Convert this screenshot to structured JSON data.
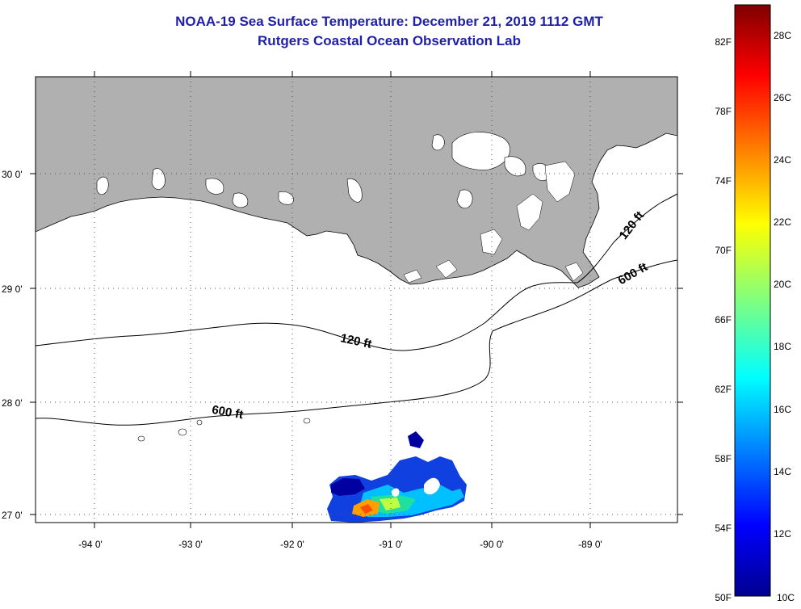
{
  "header": {
    "title": "NOAA-19 Sea Surface Temperature:  December 21, 2019 1112 GMT",
    "subtitle": "Rutgers Coastal Ocean Observation Lab"
  },
  "map": {
    "lon_ticks": [
      "-94 0'",
      "-93 0'",
      "-92 0'",
      "-91 0'",
      "-90 0'",
      "-89 0'"
    ],
    "lat_ticks": [
      "30 0'",
      "29 0'",
      "28 0'",
      "27 0'"
    ],
    "contour_labels": [
      "120 ft",
      "120 ft",
      "600 ft",
      "600 ft"
    ],
    "colors": {
      "land": "#b0b0b0",
      "ocean": "#ffffff",
      "grid": "#555555"
    }
  },
  "colorbar": {
    "fahrenheit": [
      "82F",
      "78F",
      "74F",
      "70F",
      "66F",
      "62F",
      "58F",
      "54F",
      "50F"
    ],
    "celsius": [
      "28C",
      "26C",
      "24C",
      "22C",
      "20C",
      "18C",
      "16C",
      "14C",
      "12C",
      "10C"
    ],
    "range_c": [
      10,
      29
    ]
  }
}
